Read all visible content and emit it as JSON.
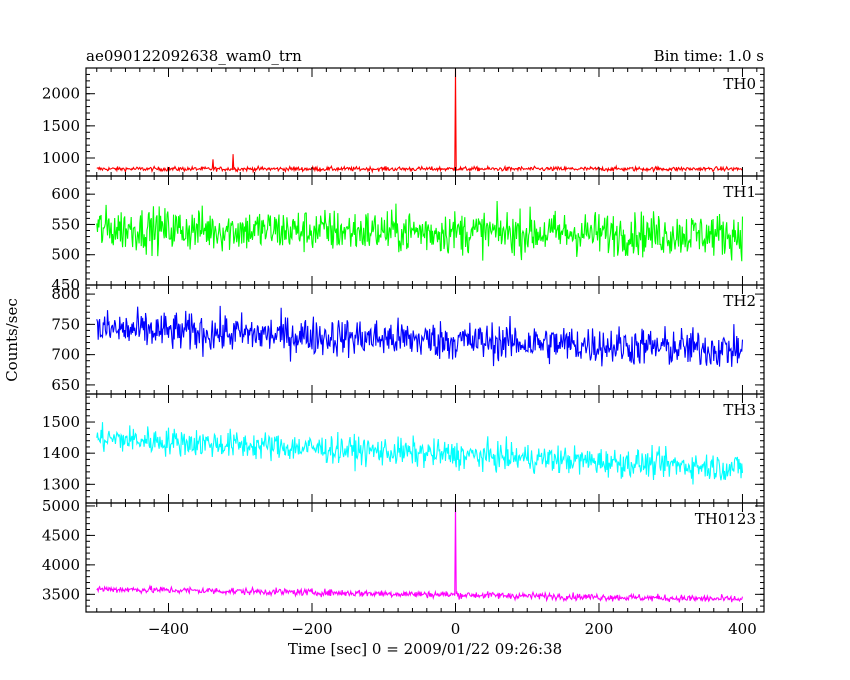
{
  "header": {
    "title": "ae090122092638_wam0_trn",
    "bin_time": "Bin time: 1.0 s"
  },
  "axes": {
    "xlabel": "Time [sec] 0 = 2009/01/22 09:26:38",
    "ylabel": "Counts/sec"
  },
  "colors": {
    "TH0": "#ff0000",
    "TH1": "#00ff00",
    "TH2": "#0000ff",
    "TH3": "#00ffff",
    "TH0123": "#ff00ff"
  },
  "chart_data": {
    "type": "line",
    "xlim": [
      -515,
      430
    ],
    "x_range_data": [
      -500,
      400
    ],
    "x_step": 1,
    "x_ticks": [
      -400,
      -200,
      0,
      200,
      400
    ],
    "grid": false,
    "legend": "per-panel label top-right",
    "panels": [
      {
        "name": "TH0",
        "ylim": [
          720,
          2400
        ],
        "y_ticks": [
          1000,
          1500,
          2000
        ],
        "tick_labels": [
          "1000",
          "1500",
          "2000"
        ],
        "baseline": 830,
        "noise": 28,
        "spikes": [
          {
            "x": 0,
            "y": 2400
          },
          {
            "x": -310,
            "y": 1060
          },
          {
            "x": -338,
            "y": 980
          }
        ]
      },
      {
        "name": "TH1",
        "ylim": [
          450,
          630
        ],
        "y_ticks": [
          450,
          500,
          550,
          600
        ],
        "tick_labels": [
          "450",
          "500",
          "550",
          "600"
        ],
        "baseline_start": 543,
        "baseline_end": 533,
        "noise": 30
      },
      {
        "name": "TH2",
        "ylim": [
          635,
          815
        ],
        "y_ticks": [
          650,
          700,
          750,
          800
        ],
        "tick_labels": [
          "650",
          "700",
          "750",
          "800"
        ],
        "baseline_start": 742,
        "baseline_end": 708,
        "noise": 27
      },
      {
        "name": "TH3",
        "ylim": [
          1240,
          1590
        ],
        "y_ticks": [
          1300,
          1400,
          1500
        ],
        "tick_labels": [
          "1300",
          "1400",
          "1500"
        ],
        "baseline_start": 1448,
        "baseline_end": 1352,
        "noise": 38
      },
      {
        "name": "TH0123",
        "ylim": [
          3200,
          5050
        ],
        "y_ticks": [
          3500,
          4000,
          4500,
          5000
        ],
        "tick_labels": [
          "3500",
          "4000",
          "4500",
          "5000"
        ],
        "baseline_start": 3590,
        "baseline_end": 3415,
        "noise": 50,
        "spikes": [
          {
            "x": 0,
            "y": 5050
          }
        ]
      }
    ]
  }
}
